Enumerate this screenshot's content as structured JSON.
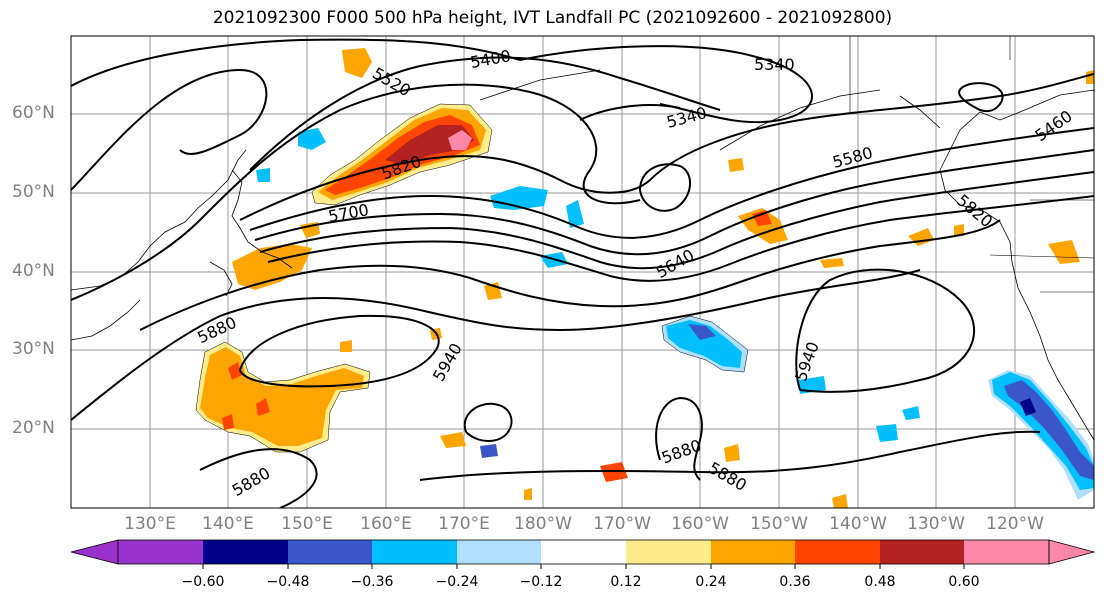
{
  "title": "2021092300 F000 500 hPa height, IVT Landfall PC (2021092600 - 2021092800)",
  "lat_labels": [
    "60°N",
    "50°N",
    "40°N",
    "30°N",
    "20°N"
  ],
  "lon_labels": [
    "130°E",
    "140°E",
    "150°E",
    "160°E",
    "170°E",
    "180°W",
    "170°W",
    "160°W",
    "150°W",
    "140°W",
    "130°W",
    "120°W"
  ],
  "contour_labels": [
    "5400",
    "5340",
    "5520",
    "5340",
    "5820",
    "5580",
    "5460",
    "5700",
    "5820",
    "5640",
    "5880",
    "5940",
    "5940",
    "5880",
    "5880",
    "5880"
  ],
  "colorbar": {
    "colors": [
      "#9932cc",
      "#00008b",
      "#3a56c8",
      "#00bfff",
      "#b0e0ff",
      "#ffffff",
      "#ffec8b",
      "#ffa500",
      "#ff4500",
      "#b22222",
      "#ff88aa"
    ],
    "tick_labels": [
      "−0.60",
      "−0.48",
      "−0.36",
      "−0.24",
      "−0.12",
      "0.12",
      "0.24",
      "0.36",
      "0.48",
      "0.60"
    ]
  }
}
